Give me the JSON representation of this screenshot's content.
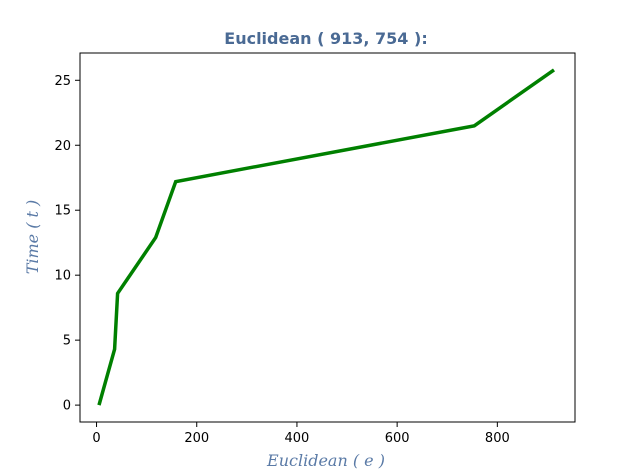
{
  "chart_data": {
    "type": "line",
    "title": "Euclidean ( 913, 754 ):",
    "xlabel": "Euclidean ( e )",
    "ylabel": "Time ( t )",
    "xlim": [
      -33,
      955
    ],
    "ylim": [
      -1.3,
      27.1
    ],
    "xticks": [
      0,
      200,
      400,
      600,
      800
    ],
    "yticks": [
      0,
      5,
      10,
      15,
      20,
      25
    ],
    "grid": false,
    "series": [
      {
        "color": "#008000",
        "x": [
          5,
          36,
          42,
          118,
          158,
          754,
          913
        ],
        "y": [
          0,
          4.3,
          8.6,
          12.9,
          17.2,
          21.5,
          25.8
        ]
      }
    ]
  },
  "colors": {
    "title": "#4a6a94",
    "axis_label": "#5a7aa6",
    "line": "#008000"
  }
}
